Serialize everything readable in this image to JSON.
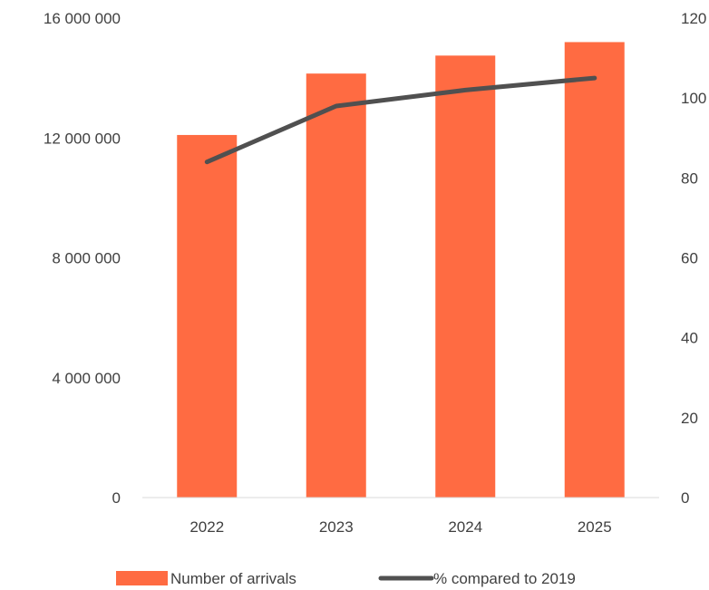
{
  "chart_data": {
    "type": "bar",
    "categories": [
      "2022",
      "2023",
      "2024",
      "2025"
    ],
    "series": [
      {
        "name": "Number of arrivals",
        "type": "bar",
        "axis": "left",
        "color": "#FF6B42",
        "values": [
          12100000,
          14150000,
          14750000,
          15200000
        ]
      },
      {
        "name": "% compared to 2019",
        "type": "line",
        "axis": "right",
        "color": "#505050",
        "values": [
          84,
          98,
          102,
          105
        ]
      }
    ],
    "y_left": {
      "min": 0,
      "max": 16000000,
      "ticks": [
        "0",
        "4 000 000",
        "8 000 000",
        "12 000 000",
        "16 000 000"
      ]
    },
    "y_right": {
      "min": 0,
      "max": 120,
      "ticks": [
        "0",
        "20",
        "40",
        "60",
        "80",
        "100",
        "120"
      ]
    },
    "legend": "bottom",
    "grid": false
  }
}
